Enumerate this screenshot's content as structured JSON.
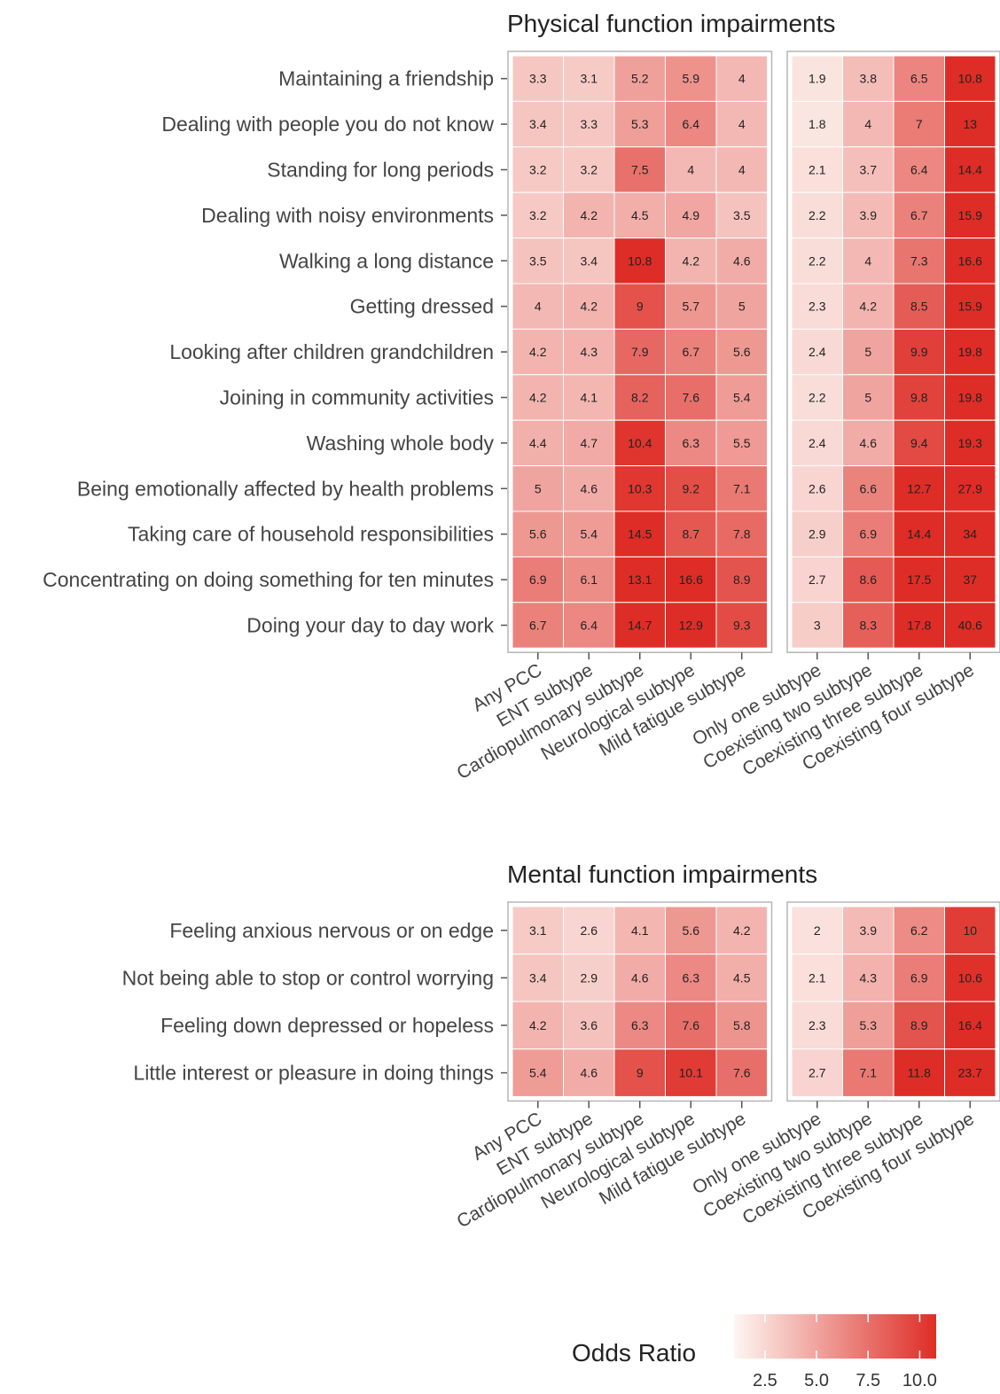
{
  "chart_data": [
    {
      "type": "heatmap",
      "title": "Physical function impairments",
      "rows": [
        "Maintaining a friendship",
        "Dealing with people you do not know",
        "Standing for long periods",
        "Dealing with noisy environments",
        "Walking a long distance",
        "Getting dressed",
        "Looking after children grandchildren",
        "Joining in community activities",
        "Washing whole body",
        "Being emotionally affected by health problems",
        "Taking care of household responsibilities",
        "Concentrating on doing something for ten minutes",
        "Doing your day to day work"
      ],
      "panels": [
        {
          "columns": [
            "Any PCC",
            "ENT subtype",
            "Cardiopulmonary subtype",
            "Neurological subtype",
            "Mild fatigue subtype"
          ],
          "values": [
            [
              3.3,
              3.1,
              5.2,
              5.9,
              4.0
            ],
            [
              3.4,
              3.3,
              5.3,
              6.4,
              4.0
            ],
            [
              3.2,
              3.2,
              7.5,
              4.0,
              4.0
            ],
            [
              3.2,
              4.2,
              4.5,
              4.9,
              3.5
            ],
            [
              3.5,
              3.4,
              10.8,
              4.2,
              4.6
            ],
            [
              4.0,
              4.2,
              9.0,
              5.7,
              5.0
            ],
            [
              4.2,
              4.3,
              7.9,
              6.7,
              5.6
            ],
            [
              4.2,
              4.1,
              8.2,
              7.6,
              5.4
            ],
            [
              4.4,
              4.7,
              10.4,
              6.3,
              5.5
            ],
            [
              5.0,
              4.6,
              10.3,
              9.2,
              7.1
            ],
            [
              5.6,
              5.4,
              14.5,
              8.7,
              7.8
            ],
            [
              6.9,
              6.1,
              13.1,
              16.6,
              8.9
            ],
            [
              6.7,
              6.4,
              14.7,
              12.9,
              9.3
            ]
          ]
        },
        {
          "columns": [
            "Only one subtype",
            "Coexisting two subtype",
            "Coexisting three subtype",
            "Coexisting four subtype"
          ],
          "values": [
            [
              1.9,
              3.8,
              6.5,
              10.8
            ],
            [
              1.8,
              4.0,
              7.0,
              13.0
            ],
            [
              2.1,
              3.7,
              6.4,
              14.4
            ],
            [
              2.2,
              3.9,
              6.7,
              15.9
            ],
            [
              2.2,
              4.0,
              7.3,
              16.6
            ],
            [
              2.3,
              4.2,
              8.5,
              15.9
            ],
            [
              2.4,
              5.0,
              9.9,
              19.8
            ],
            [
              2.2,
              5.0,
              9.8,
              19.8
            ],
            [
              2.4,
              4.6,
              9.4,
              19.3
            ],
            [
              2.6,
              6.6,
              12.7,
              27.9
            ],
            [
              2.9,
              6.9,
              14.4,
              34.0
            ],
            [
              2.7,
              8.6,
              17.5,
              37.0
            ],
            [
              3.0,
              8.3,
              17.8,
              40.6
            ]
          ]
        }
      ]
    },
    {
      "type": "heatmap",
      "title": "Mental function impairments",
      "rows": [
        "Feeling anxious nervous or on edge",
        "Not being able to stop or control worrying",
        "Feeling down depressed or hopeless",
        "Little interest or pleasure in doing things"
      ],
      "panels": [
        {
          "columns": [
            "Any PCC",
            "ENT subtype",
            "Cardiopulmonary subtype",
            "Neurological subtype",
            "Mild fatigue subtype"
          ],
          "values": [
            [
              3.1,
              2.6,
              4.1,
              5.6,
              4.2
            ],
            [
              3.4,
              2.9,
              4.6,
              6.3,
              4.5
            ],
            [
              4.2,
              3.6,
              6.3,
              7.6,
              5.8
            ],
            [
              5.4,
              4.6,
              9.0,
              10.1,
              7.6
            ]
          ]
        },
        {
          "columns": [
            "Only one subtype",
            "Coexisting two subtype",
            "Coexisting three subtype",
            "Coexisting four subtype"
          ],
          "values": [
            [
              2.0,
              3.9,
              6.2,
              10.0
            ],
            [
              2.1,
              4.3,
              6.9,
              10.6
            ],
            [
              2.3,
              5.3,
              8.9,
              16.4
            ],
            [
              2.7,
              7.1,
              11.8,
              23.7
            ]
          ]
        }
      ]
    }
  ],
  "legend": {
    "title": "Odds Ratio",
    "ticks": [
      "2.5",
      "5.0",
      "7.5",
      "10.0"
    ],
    "tick_values": [
      2.5,
      5.0,
      7.5,
      10.0
    ],
    "range": [
      1,
      10.8
    ],
    "color_low": "#fdf6f2",
    "color_high": "#de2d26"
  },
  "colors": {
    "grid_border": "#b5b5b5",
    "cell_border": "#ffffff",
    "text": "#444444"
  }
}
